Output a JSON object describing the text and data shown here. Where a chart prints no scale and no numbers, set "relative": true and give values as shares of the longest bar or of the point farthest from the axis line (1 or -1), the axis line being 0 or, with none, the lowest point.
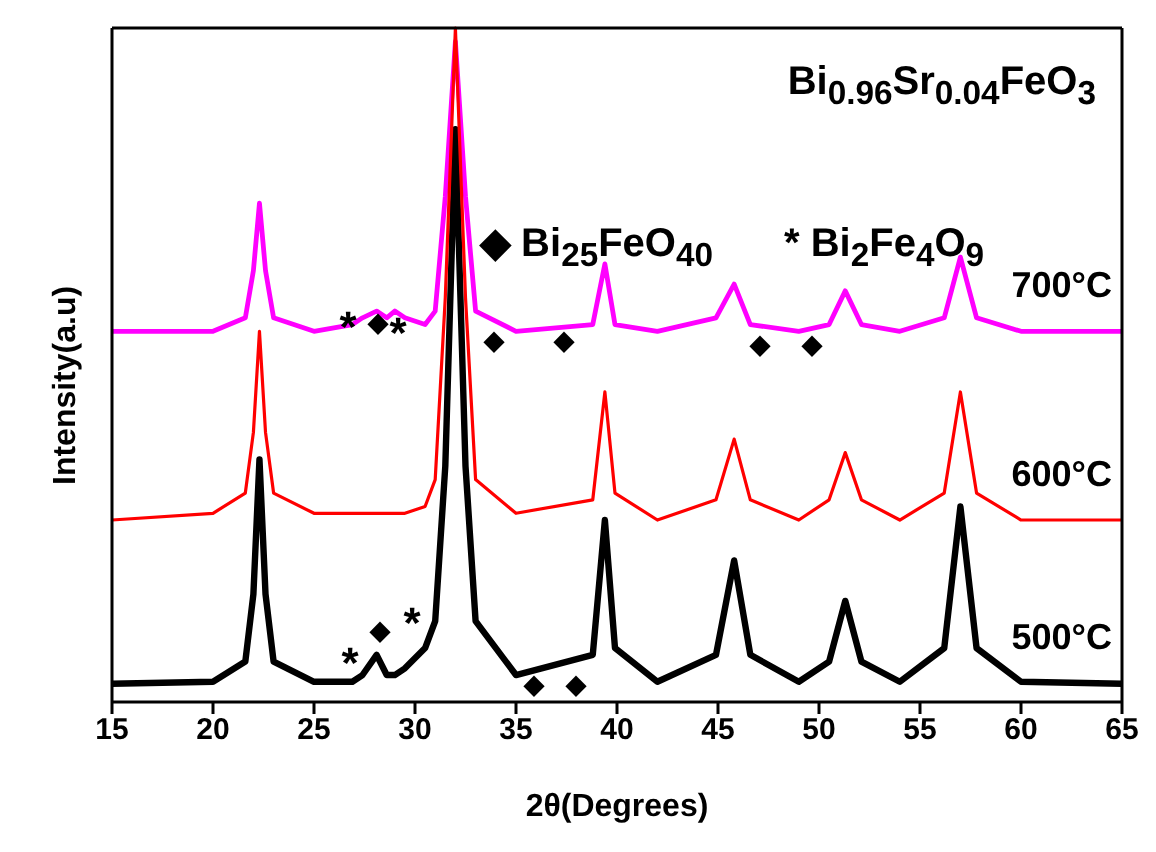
{
  "chart_data": {
    "type": "line",
    "title": "Bi$_{0.96}$Sr$_{0.04}$FeO$_{3}$",
    "xlabel": "2θ(Degrees)",
    "ylabel": "Intensity(a.u)",
    "relative": true,
    "xlim": [
      15,
      65
    ],
    "xticks": [
      15,
      20,
      25,
      30,
      35,
      40,
      45,
      50,
      55,
      60,
      65
    ],
    "grid": false,
    "marker": "none",
    "line_style": "solid",
    "x": [
      15,
      20,
      21.6,
      22.0,
      22.3,
      22.6,
      23.0,
      25,
      26.9,
      27.4,
      28.1,
      28.6,
      29.0,
      29.5,
      30.5,
      31.0,
      31.5,
      32.0,
      32.5,
      33.0,
      35,
      38.8,
      39.4,
      39.9,
      42,
      44.9,
      45.8,
      46.6,
      49,
      50.5,
      51.3,
      52.1,
      54,
      56.2,
      57.0,
      57.8,
      60,
      65
    ],
    "series": [
      {
        "name": "500°C",
        "color": "#000000",
        "values": [
          0.027,
          0.03,
          0.06,
          0.16,
          0.36,
          0.16,
          0.06,
          0.03,
          0.03,
          0.04,
          0.07,
          0.04,
          0.04,
          0.05,
          0.08,
          0.12,
          0.35,
          0.85,
          0.35,
          0.12,
          0.04,
          0.07,
          0.27,
          0.08,
          0.03,
          0.07,
          0.21,
          0.07,
          0.03,
          0.06,
          0.15,
          0.06,
          0.03,
          0.08,
          0.29,
          0.08,
          0.03,
          0.027
        ]
      },
      {
        "name": "700°C",
        "color": "#ff00ff",
        "values": [
          0.55,
          0.55,
          0.57,
          0.64,
          0.74,
          0.64,
          0.57,
          0.55,
          0.56,
          0.57,
          0.58,
          0.57,
          0.58,
          0.57,
          0.56,
          0.58,
          0.75,
          0.98,
          0.75,
          0.58,
          0.55,
          0.56,
          0.65,
          0.56,
          0.55,
          0.57,
          0.62,
          0.56,
          0.55,
          0.56,
          0.61,
          0.56,
          0.55,
          0.57,
          0.66,
          0.57,
          0.55,
          0.55
        ]
      },
      {
        "name": "600°C",
        "color": "#ff0000",
        "values": [
          0.27,
          0.28,
          0.31,
          0.4,
          0.55,
          0.4,
          0.31,
          0.28,
          0.28,
          0.28,
          0.28,
          0.28,
          0.28,
          0.28,
          0.29,
          0.33,
          0.6,
          1.0,
          0.6,
          0.33,
          0.28,
          0.3,
          0.46,
          0.31,
          0.27,
          0.3,
          0.39,
          0.3,
          0.27,
          0.3,
          0.37,
          0.3,
          0.27,
          0.31,
          0.46,
          0.31,
          0.27,
          0.27
        ]
      }
    ],
    "annotations": [
      "◆ Bi$_{25}$FeO$_{40}$",
      "* Bi$_{2}$Fe$_{4}$O$_{9}$",
      "*",
      "◆",
      "*",
      "◆",
      "◆",
      "◆",
      "◆",
      "*",
      "◆",
      "*",
      "◆",
      "◆"
    ]
  }
}
